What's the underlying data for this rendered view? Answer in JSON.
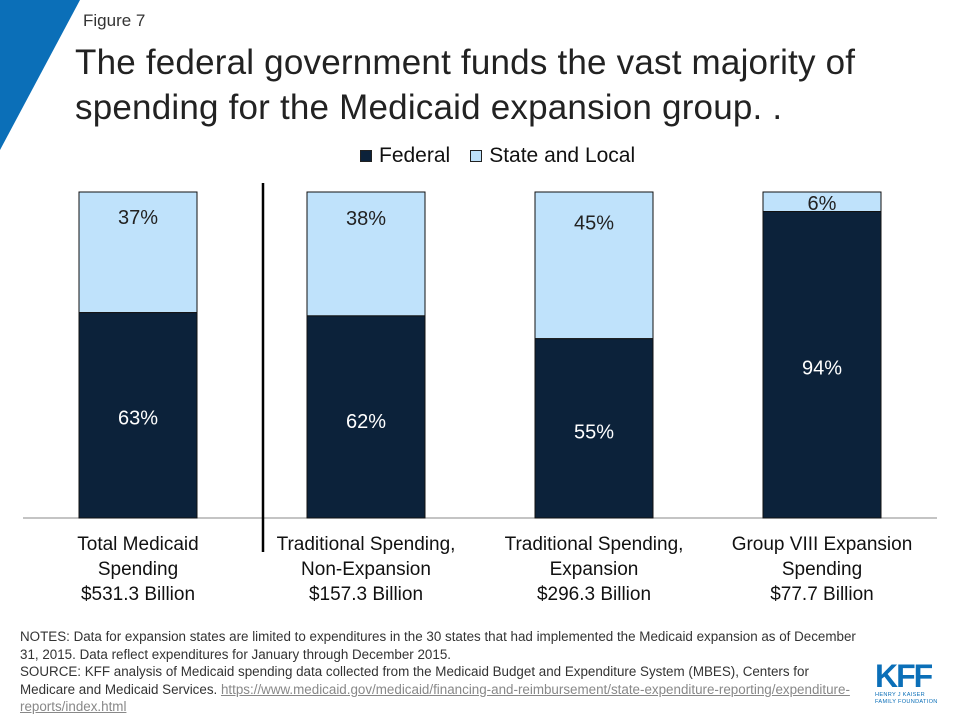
{
  "figure_label": "Figure 7",
  "title": "The federal government funds the vast majority of spending for the Medicaid expansion group.  .",
  "colors": {
    "federal": "#0c223a",
    "state_local": "#bfe2fb",
    "accent": "#0b6fb8"
  },
  "chart_data": {
    "type": "bar",
    "stacked": true,
    "categories": [
      [
        "Total Medicaid",
        "Spending",
        "$531.3 Billion"
      ],
      [
        "Traditional Spending,",
        "Non-Expansion",
        "$157.3 Billion"
      ],
      [
        "Traditional Spending,",
        "Expansion",
        "$296.3 Billion"
      ],
      [
        "Group VIII Expansion",
        "Spending",
        "$77.7 Billion"
      ]
    ],
    "series": [
      {
        "name": "Federal",
        "values": [
          63,
          62,
          55,
          94
        ],
        "labels": [
          "63%",
          "62%",
          "55%",
          "94%"
        ]
      },
      {
        "name": "State and Local",
        "values": [
          37,
          38,
          45,
          6
        ],
        "labels": [
          "37%",
          "38%",
          "45%",
          "6%"
        ]
      }
    ],
    "ylim": [
      0,
      100
    ],
    "legend": "top-center",
    "grid": false,
    "xlabel": "",
    "ylabel": ""
  },
  "notes": {
    "notes_text": "NOTES: Data for expansion states are limited to expenditures in the 30 states that had implemented the Medicaid expansion as of December 31, 2015. Data reflect expenditures for January through December 2015.",
    "source_text": "SOURCE: KFF analysis of Medicaid spending data collected from the Medicaid Budget and Expenditure System (MBES), Centers for Medicare and Medicaid Services.",
    "source_link": "https://www.medicaid.gov/medicaid/financing-and-reimbursement/state-expenditure-reporting/expenditure-reports/index.html"
  },
  "logo": {
    "mark": "KFF",
    "line1": "HENRY J KAISER",
    "line2": "FAMILY FOUNDATION"
  }
}
